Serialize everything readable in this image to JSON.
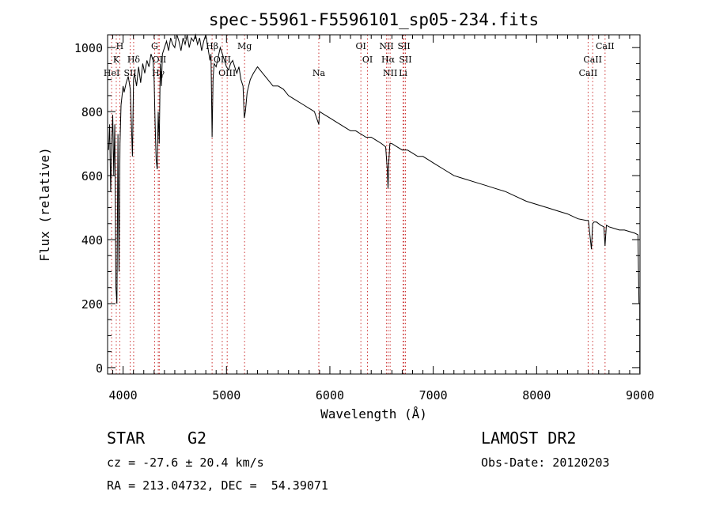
{
  "chart_data": {
    "type": "line",
    "title": "spec-55961-F5596101_sp05-234.fits",
    "xlabel": "Wavelength (Å)",
    "ylabel": "Flux (relative)",
    "xlim": [
      3850,
      9000
    ],
    "ylim": [
      -20,
      1040
    ],
    "xticks": [
      4000,
      5000,
      6000,
      7000,
      8000,
      9000
    ],
    "yticks": [
      0,
      200,
      400,
      600,
      800,
      1000
    ],
    "grid": false,
    "series": [
      {
        "name": "spectrum",
        "x": [
          3860,
          3870,
          3880,
          3890,
          3900,
          3910,
          3920,
          3930,
          3940,
          3950,
          3960,
          3970,
          3980,
          3990,
          4000,
          4010,
          4030,
          4050,
          4070,
          4090,
          4101,
          4110,
          4130,
          4150,
          4170,
          4190,
          4210,
          4230,
          4250,
          4270,
          4290,
          4300,
          4310,
          4320,
          4330,
          4340,
          4350,
          4360,
          4370,
          4380,
          4400,
          4420,
          4440,
          4460,
          4480,
          4500,
          4520,
          4540,
          4560,
          4580,
          4600,
          4620,
          4640,
          4660,
          4680,
          4700,
          4720,
          4740,
          4760,
          4780,
          4800,
          4820,
          4840,
          4850,
          4861,
          4870,
          4880,
          4900,
          4920,
          4940,
          4960,
          4980,
          5000,
          5020,
          5040,
          5060,
          5080,
          5100,
          5120,
          5140,
          5160,
          5172,
          5183,
          5200,
          5230,
          5260,
          5300,
          5350,
          5400,
          5450,
          5500,
          5550,
          5600,
          5650,
          5700,
          5750,
          5800,
          5850,
          5893,
          5900,
          5950,
          6000,
          6050,
          6100,
          6150,
          6200,
          6250,
          6300,
          6350,
          6400,
          6450,
          6500,
          6540,
          6555,
          6563,
          6570,
          6580,
          6600,
          6650,
          6700,
          6750,
          6800,
          6850,
          6900,
          6950,
          7000,
          7100,
          7200,
          7300,
          7400,
          7500,
          7600,
          7700,
          7800,
          7900,
          8000,
          8100,
          8200,
          8300,
          8400,
          8480,
          8500,
          8530,
          8542,
          8555,
          8580,
          8620,
          8650,
          8662,
          8675,
          8700,
          8750,
          8800,
          8850,
          8900,
          8950,
          8980,
          8990,
          8998
        ],
        "values": [
          680,
          760,
          550,
          700,
          790,
          600,
          760,
          250,
          200,
          730,
          300,
          700,
          820,
          850,
          880,
          860,
          890,
          910,
          870,
          660,
          900,
          920,
          880,
          940,
          890,
          950,
          920,
          960,
          940,
          980,
          960,
          900,
          760,
          650,
          620,
          800,
          700,
          950,
          880,
          980,
          1000,
          1020,
          990,
          1030,
          1010,
          1000,
          1040,
          1020,
          990,
          1030,
          1010,
          1040,
          1000,
          1030,
          1020,
          1040,
          1010,
          1030,
          990,
          1020,
          1040,
          1000,
          960,
          980,
          720,
          900,
          950,
          940,
          970,
          1000,
          980,
          960,
          940,
          930,
          950,
          960,
          940,
          920,
          940,
          900,
          880,
          780,
          800,
          860,
          900,
          920,
          940,
          920,
          900,
          880,
          880,
          870,
          850,
          840,
          830,
          820,
          810,
          800,
          760,
          800,
          790,
          780,
          770,
          760,
          750,
          740,
          740,
          730,
          720,
          720,
          710,
          700,
          690,
          620,
          560,
          640,
          700,
          700,
          690,
          680,
          680,
          670,
          660,
          660,
          650,
          640,
          620,
          600,
          590,
          580,
          570,
          560,
          550,
          535,
          520,
          510,
          500,
          490,
          480,
          465,
          460,
          460,
          370,
          450,
          455,
          455,
          445,
          440,
          380,
          445,
          440,
          435,
          430,
          430,
          425,
          420,
          415,
          200,
          200
        ]
      }
    ],
    "spectral_lines": [
      {
        "label": "H",
        "x": 3968,
        "row": 0
      },
      {
        "label": "K",
        "x": 3934,
        "row": 1
      },
      {
        "label": "Hδ",
        "x": 4102,
        "row": 1
      },
      {
        "label": "HeI",
        "x": 3889,
        "row": 2
      },
      {
        "label": "SII",
        "x": 4069,
        "row": 2
      },
      {
        "label": "G",
        "x": 4305,
        "row": 0
      },
      {
        "label": "OII",
        "x": 4350,
        "row": 1
      },
      {
        "label": "Hγ",
        "x": 4340,
        "row": 2
      },
      {
        "label": "Hβ",
        "x": 4861,
        "row": 0
      },
      {
        "label": "OIII",
        "x": 4959,
        "row": 1
      },
      {
        "label": "OIII",
        "x": 5007,
        "row": 2
      },
      {
        "label": "Mg",
        "x": 5175,
        "row": 0
      },
      {
        "label": "Na",
        "x": 5893,
        "row": 2
      },
      {
        "label": "OI",
        "x": 6300,
        "row": 0
      },
      {
        "label": "OI",
        "x": 6364,
        "row": 1
      },
      {
        "label": "NII",
        "x": 6548,
        "row": 0
      },
      {
        "label": "Hα",
        "x": 6563,
        "row": 1
      },
      {
        "label": "NII",
        "x": 6583,
        "row": 2
      },
      {
        "label": "SII",
        "x": 6717,
        "row": 0
      },
      {
        "label": "SII",
        "x": 6731,
        "row": 1
      },
      {
        "label": "Li",
        "x": 6708,
        "row": 2
      },
      {
        "label": "CaII",
        "x": 8662,
        "row": 0
      },
      {
        "label": "CaII",
        "x": 8542,
        "row": 1
      },
      {
        "label": "CaII",
        "x": 8498,
        "row": 2
      }
    ]
  },
  "info": {
    "class_label": "STAR",
    "subclass": "G2",
    "survey": "LAMOST DR2",
    "cz": "cz = -27.6 ± 20.4 km/s",
    "obs_date": "Obs-Date: 20120203",
    "coords": "RA = 213.04732, DEC =  54.39071"
  }
}
